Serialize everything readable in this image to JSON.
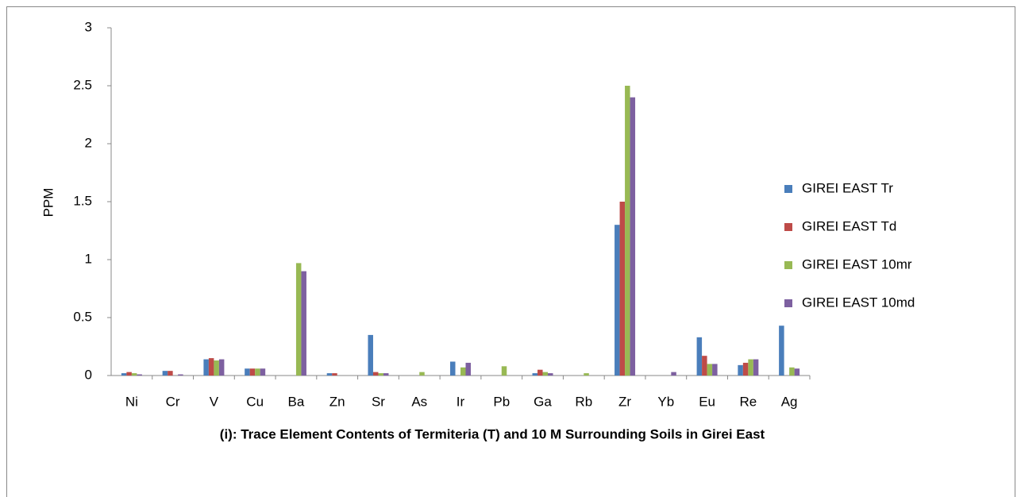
{
  "chart_data": {
    "type": "bar",
    "title": "(i): Trace Element Contents of Termiteria (T) and 10 M Surrounding Soils in Girei East",
    "y_label": "PPM",
    "categories": [
      "Ni",
      "Cr",
      "V",
      "Cu",
      "Ba",
      "Zn",
      "Sr",
      "As",
      "Ir",
      "Pb",
      "Ga",
      "Rb",
      "Zr",
      "Yb",
      "Eu",
      "Re",
      "Ag"
    ],
    "series": [
      {
        "name": "GIREI EAST Tr",
        "color": "#4a7ebb",
        "values": [
          0.02,
          0.04,
          0.14,
          0.06,
          0,
          0.02,
          0.35,
          0,
          0.12,
          0,
          0.02,
          0,
          1.3,
          0,
          0.33,
          0.09,
          0.43
        ]
      },
      {
        "name": "GIREI EAST Td",
        "color": "#be4b48",
        "values": [
          0.03,
          0.04,
          0.15,
          0.06,
          0,
          0.02,
          0.03,
          0,
          0,
          0,
          0.05,
          0,
          1.5,
          0,
          0.17,
          0.11,
          0
        ]
      },
      {
        "name": "GIREI EAST 10mr",
        "color": "#98b954",
        "values": [
          0.02,
          0,
          0.13,
          0.06,
          0.97,
          0,
          0.02,
          0.03,
          0.07,
          0.08,
          0.03,
          0.02,
          2.5,
          0,
          0.1,
          0.14,
          0.07
        ]
      },
      {
        "name": "GIREI EAST 10md",
        "color": "#7d60a0",
        "values": [
          0.01,
          0.01,
          0.14,
          0.06,
          0.9,
          0,
          0.02,
          0,
          0.11,
          0,
          0.02,
          0,
          2.4,
          0.03,
          0.1,
          0.14,
          0.06
        ]
      }
    ],
    "ylim": [
      0,
      3
    ],
    "yticks": [
      0,
      0.5,
      1,
      1.5,
      2,
      2.5,
      3
    ],
    "legend": "right"
  }
}
